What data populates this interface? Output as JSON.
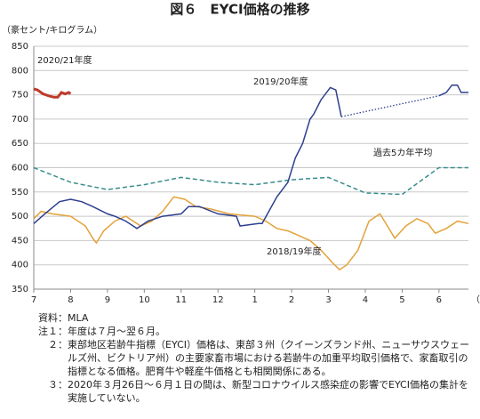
{
  "chart_data": {
    "type": "line",
    "title": "図６　EYCI価格の推移",
    "y_label": "（豪セント/キログラム）",
    "x_unit": "（月）",
    "xlim": [
      0,
      11.8
    ],
    "ylim": [
      350,
      850
    ],
    "xticks": [
      {
        "value": 0,
        "label": "7"
      },
      {
        "value": 1,
        "label": "8"
      },
      {
        "value": 2,
        "label": "9"
      },
      {
        "value": 3,
        "label": "10"
      },
      {
        "value": 4,
        "label": "11"
      },
      {
        "value": 5,
        "label": "12"
      },
      {
        "value": 6,
        "label": "1"
      },
      {
        "value": 7,
        "label": "2"
      },
      {
        "value": 8,
        "label": "3"
      },
      {
        "value": 9,
        "label": "4"
      },
      {
        "value": 10,
        "label": "5"
      },
      {
        "value": 11,
        "label": "6"
      }
    ],
    "yticks": [
      350,
      400,
      450,
      500,
      550,
      600,
      650,
      700,
      750,
      800,
      850
    ],
    "grid": true,
    "series": [
      {
        "name": "過去5カ年平均",
        "color": "#3a8c8c",
        "style": "dashed",
        "x": [
          0,
          1,
          2,
          3,
          4,
          5,
          6,
          7,
          8,
          9,
          10,
          11,
          11.8
        ],
        "values": [
          600,
          570,
          555,
          565,
          580,
          570,
          565,
          575,
          580,
          548,
          545,
          600,
          600
        ]
      },
      {
        "name": "2018/19年度",
        "color": "#e3a23a",
        "style": "solid",
        "x": [
          0,
          0.2,
          0.5,
          1,
          1.4,
          1.6,
          1.7,
          1.9,
          2.2,
          2.5,
          2.9,
          3.2,
          3.5,
          3.8,
          4.1,
          4.4,
          4.8,
          5.3,
          6,
          6.3,
          6.6,
          6.9,
          7.2,
          7.5,
          7.8,
          8.1,
          8.3,
          8.5,
          8.8,
          9.1,
          9.4,
          9.6,
          9.8,
          10.1,
          10.4,
          10.7,
          10.9,
          11.2,
          11.5,
          11.8
        ],
        "values": [
          495,
          510,
          505,
          500,
          480,
          455,
          445,
          470,
          490,
          500,
          480,
          490,
          510,
          540,
          535,
          520,
          515,
          505,
          500,
          490,
          475,
          470,
          460,
          450,
          430,
          405,
          390,
          400,
          430,
          490,
          505,
          480,
          455,
          480,
          495,
          485,
          465,
          475,
          490,
          485
        ]
      },
      {
        "name": "2019/20年度",
        "color": "#2e3f8f",
        "style": "solid",
        "x": [
          0,
          0.3,
          0.7,
          1,
          1.3,
          1.6,
          2,
          2.2,
          2.5,
          2.8,
          3.1,
          3.5,
          4,
          4.2,
          4.5,
          5,
          5.5,
          5.6,
          6.1,
          6.2,
          6.6,
          6.9,
          7.1,
          7.3,
          7.5,
          7.6,
          7.8,
          8.05,
          8.2,
          8.35
        ],
        "values": [
          485,
          505,
          530,
          535,
          530,
          520,
          505,
          500,
          490,
          475,
          490,
          500,
          505,
          520,
          520,
          505,
          500,
          480,
          485,
          485,
          540,
          570,
          620,
          650,
          700,
          710,
          740,
          765,
          760,
          705
        ]
      },
      {
        "color": "#2e3f8f",
        "style": "dotted",
        "x": [
          8.35,
          11
        ],
        "values": [
          705,
          748
        ]
      },
      {
        "color": "#2e3f8f",
        "style": "solid",
        "x": [
          11,
          11.2,
          11.35,
          11.5,
          11.6,
          11.8
        ],
        "values": [
          748,
          755,
          770,
          770,
          755,
          755
        ]
      },
      {
        "name": "2020/21年度",
        "color": "#c0392b",
        "style": "bold",
        "x": [
          0,
          0.1,
          0.25,
          0.4,
          0.55,
          0.65,
          0.75,
          0.85,
          0.95,
          1
        ],
        "values": [
          762,
          760,
          752,
          748,
          745,
          745,
          755,
          752,
          755,
          752
        ]
      }
    ],
    "notes": [
      {
        "label": "資料：",
        "text": "MLA"
      },
      {
        "label": "注１：",
        "text": "年度は７月～翌６月。"
      },
      {
        "label": "２：",
        "text": "東部地区若齢牛指標（EYCI）価格は、東部３州（クイーンズランド州、ニューサウスウェールズ州、ビクトリア州）の主要家畜市場における若齢牛の加重平均取引価格で、家畜取引の指標となる価格。肥育牛や軽産牛価格とも相関関係にある。"
      },
      {
        "label": "３：",
        "text": "2020年３月26日～６月１日の間は、新型コロナウイルス感染症の影響でEYCI価格の集計を実施していない。"
      }
    ]
  }
}
